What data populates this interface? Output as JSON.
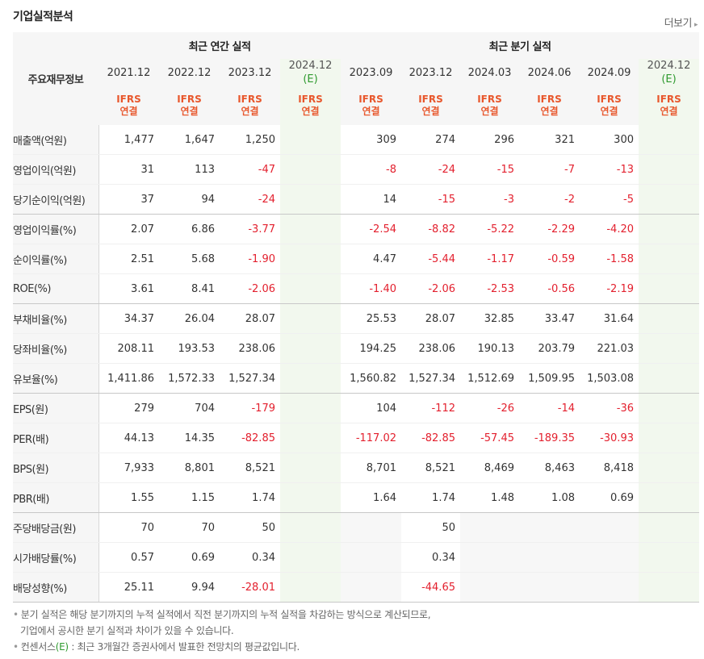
{
  "title": "기업실적분석",
  "more_label": "더보기",
  "corner_label": "주요재무정보",
  "groups": {
    "annual": "최근 연간 실적",
    "quarter": "최근 분기 실적"
  },
  "periods": [
    {
      "label": "2021.12",
      "est": false
    },
    {
      "label": "2022.12",
      "est": false
    },
    {
      "label": "2023.12",
      "est": false
    },
    {
      "label": "2024.12",
      "est": true,
      "est_mark": "(E)"
    },
    {
      "label": "2023.09",
      "est": false
    },
    {
      "label": "2023.12",
      "est": false
    },
    {
      "label": "2024.03",
      "est": false
    },
    {
      "label": "2024.06",
      "est": false
    },
    {
      "label": "2024.09",
      "est": false
    },
    {
      "label": "2024.12",
      "est": true,
      "est_mark": "(E)"
    }
  ],
  "basis": {
    "line1": "IFRS",
    "line2": "연결"
  },
  "rows": [
    {
      "label": "매출액(억원)",
      "values": [
        "1,477",
        "1,647",
        "1,250",
        "",
        "309",
        "274",
        "296",
        "321",
        "300",
        ""
      ]
    },
    {
      "label": "영업이익(억원)",
      "values": [
        "31",
        "113",
        "-47",
        "",
        "-8",
        "-24",
        "-15",
        "-7",
        "-13",
        ""
      ]
    },
    {
      "label": "당기순이익(억원)",
      "values": [
        "37",
        "94",
        "-24",
        "",
        "14",
        "-15",
        "-3",
        "-2",
        "-5",
        ""
      ],
      "group_end": true
    },
    {
      "label": "영업이익률(%)",
      "values": [
        "2.07",
        "6.86",
        "-3.77",
        "",
        "-2.54",
        "-8.82",
        "-5.22",
        "-2.29",
        "-4.20",
        ""
      ]
    },
    {
      "label": "순이익률(%)",
      "values": [
        "2.51",
        "5.68",
        "-1.90",
        "",
        "4.47",
        "-5.44",
        "-1.17",
        "-0.59",
        "-1.58",
        ""
      ]
    },
    {
      "label": "ROE(%)",
      "values": [
        "3.61",
        "8.41",
        "-2.06",
        "",
        "-1.40",
        "-2.06",
        "-2.53",
        "-0.56",
        "-2.19",
        ""
      ],
      "group_end": true
    },
    {
      "label": "부채비율(%)",
      "values": [
        "34.37",
        "26.04",
        "28.07",
        "",
        "25.53",
        "28.07",
        "32.85",
        "33.47",
        "31.64",
        ""
      ]
    },
    {
      "label": "당좌비율(%)",
      "values": [
        "208.11",
        "193.53",
        "238.06",
        "",
        "194.25",
        "238.06",
        "190.13",
        "203.79",
        "221.03",
        ""
      ]
    },
    {
      "label": "유보율(%)",
      "values": [
        "1,411.86",
        "1,572.33",
        "1,527.34",
        "",
        "1,560.82",
        "1,527.34",
        "1,512.69",
        "1,509.95",
        "1,503.08",
        ""
      ],
      "group_end": true
    },
    {
      "label": "EPS(원)",
      "values": [
        "279",
        "704",
        "-179",
        "",
        "104",
        "-112",
        "-26",
        "-14",
        "-36",
        ""
      ]
    },
    {
      "label": "PER(배)",
      "values": [
        "44.13",
        "14.35",
        "-82.85",
        "",
        "-117.02",
        "-82.85",
        "-57.45",
        "-189.35",
        "-30.93",
        ""
      ]
    },
    {
      "label": "BPS(원)",
      "values": [
        "7,933",
        "8,801",
        "8,521",
        "",
        "8,701",
        "8,521",
        "8,469",
        "8,463",
        "8,418",
        ""
      ]
    },
    {
      "label": "PBR(배)",
      "values": [
        "1.55",
        "1.15",
        "1.74",
        "",
        "1.64",
        "1.74",
        "1.48",
        "1.08",
        "0.69",
        ""
      ],
      "group_end": true
    },
    {
      "label": "주당배당금(원)",
      "values": [
        "70",
        "70",
        "50",
        "",
        "",
        "50",
        "",
        "",
        "",
        ""
      ],
      "blank_quarters": true
    },
    {
      "label": "시가배당률(%)",
      "values": [
        "0.57",
        "0.69",
        "0.34",
        "",
        "",
        "0.34",
        "",
        "",
        "",
        ""
      ],
      "blank_quarters": true
    },
    {
      "label": "배당성향(%)",
      "values": [
        "25.11",
        "9.94",
        "-28.01",
        "",
        "",
        "-44.65",
        "",
        "",
        "",
        ""
      ],
      "blank_quarters": true
    }
  ],
  "notes": {
    "note1_line1": "분기 실적은 해당 분기까지의 누적 실적에서 직전 분기까지의 누적 실적을 차감하는 방식으로 계산되므로,",
    "note1_line2": "기업에서 공시한 분기 실적과 차이가 있을 수 있습니다.",
    "note2_prefix": "컨센서스",
    "note2_mark": "(E)",
    "note2_suffix": ": 최근 3개월간 증권사에서 발표한 전망치의 평균값입니다."
  },
  "colors": {
    "negative": "#e3202e",
    "basis": "#e8572c",
    "estimate_bg": "#f2f8ee",
    "estimate_mark": "#2f9a2f"
  }
}
